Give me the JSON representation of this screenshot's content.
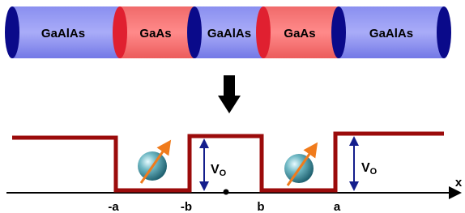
{
  "cylinder": {
    "segments": [
      {
        "label": "GaAlAs"
      },
      {
        "label": "GaAs"
      },
      {
        "label": "GaAlAs"
      },
      {
        "label": "GaAs"
      },
      {
        "label": "GaAlAs"
      }
    ]
  },
  "potential": {
    "barrier_labels": [
      {
        "main": "V",
        "sub": "O"
      },
      {
        "main": "V",
        "sub": "O"
      }
    ],
    "ticks": [
      "-a",
      "-b",
      "b",
      "a"
    ],
    "axis_label": "x"
  }
}
